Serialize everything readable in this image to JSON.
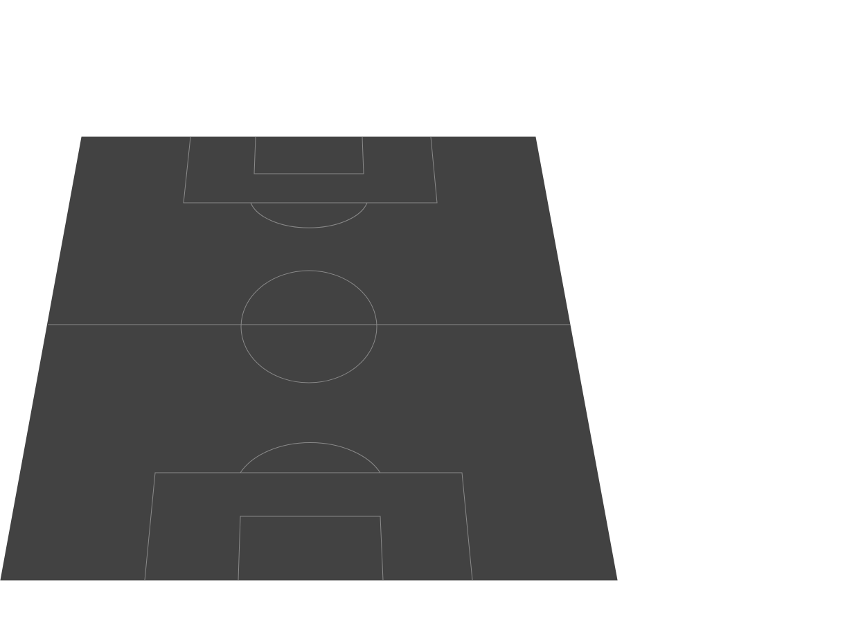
{
  "pitch": {
    "surface_color": "#424242",
    "line_color": "#8a8a8a",
    "background_color": "#ffffff"
  }
}
